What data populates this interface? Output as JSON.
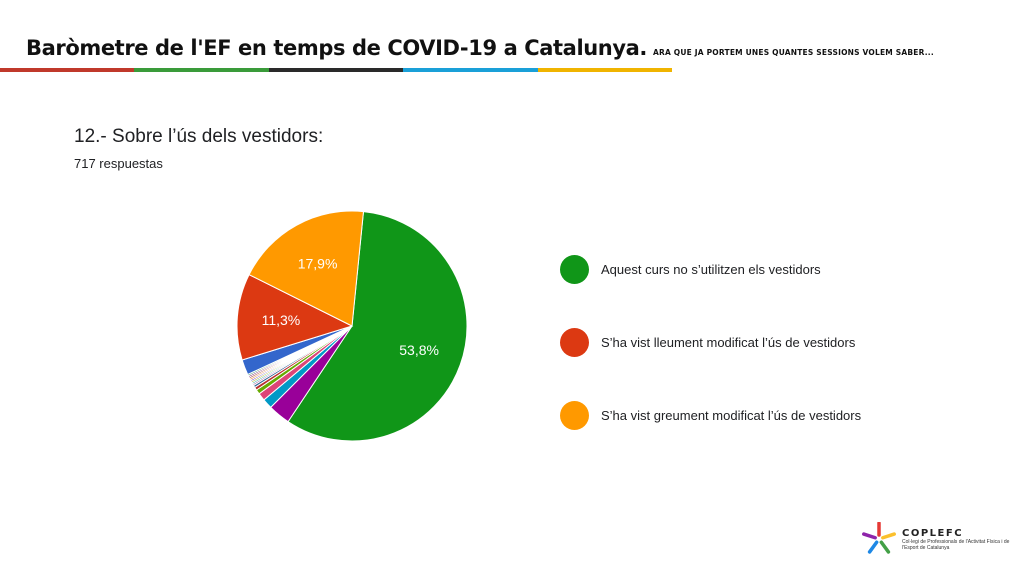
{
  "header": {
    "title": "Baròmetre de l'EF en temps de COVID-19 a Catalunya.",
    "subtitle": "ARA QUE JA PORTEM UNES QUANTES SESSIONS VOLEM SABER...",
    "stripe_colors": [
      "#c0392b",
      "#3a9b3a",
      "#2a2a2a",
      "#1aa0d8",
      "#f0b400"
    ]
  },
  "question": {
    "title": "12.- Sobre l’ús dels vestidors:",
    "responses": "717 respuestas"
  },
  "chart_data": {
    "type": "pie",
    "title": "12.- Sobre l’ús dels vestidors:",
    "slices": [
      {
        "label": "Aquest curs no s’utilitzen els vestidors",
        "value": 53.8,
        "color": "#109618",
        "data_label": "53,8%",
        "in_legend": true
      },
      {
        "label": "",
        "value": 2.9,
        "color": "#990099",
        "data_label": "",
        "in_legend": false
      },
      {
        "label": "",
        "value": 1.3,
        "color": "#0099c6",
        "data_label": "",
        "in_legend": false
      },
      {
        "label": "",
        "value": 1.0,
        "color": "#dd4477",
        "data_label": "",
        "in_legend": false
      },
      {
        "label": "",
        "value": 0.6,
        "color": "#66aa00",
        "data_label": "",
        "in_legend": false
      },
      {
        "label": "",
        "value": 0.4,
        "color": "#b82e2e",
        "data_label": "",
        "in_legend": false
      },
      {
        "label": "",
        "value": 0.3,
        "color": "#316395",
        "data_label": "",
        "in_legend": false
      },
      {
        "label": "",
        "value": 0.2,
        "color": "#994499",
        "data_label": "",
        "in_legend": false
      },
      {
        "label": "",
        "value": 0.2,
        "color": "#22aa99",
        "data_label": "",
        "in_legend": false
      },
      {
        "label": "",
        "value": 0.2,
        "color": "#aaaa11",
        "data_label": "",
        "in_legend": false
      },
      {
        "label": "",
        "value": 0.2,
        "color": "#6633cc",
        "data_label": "",
        "in_legend": false
      },
      {
        "label": "",
        "value": 0.2,
        "color": "#e67300",
        "data_label": "",
        "in_legend": false
      },
      {
        "label": "",
        "value": 0.2,
        "color": "#8b0707",
        "data_label": "",
        "in_legend": false
      },
      {
        "label": "",
        "value": 0.2,
        "color": "#651067",
        "data_label": "",
        "in_legend": false
      },
      {
        "label": "",
        "value": 0.2,
        "color": "#329262",
        "data_label": "",
        "in_legend": false
      },
      {
        "label": "",
        "value": 2.0,
        "color": "#3366cc",
        "data_label": "",
        "in_legend": false
      },
      {
        "label": "S’ha vist lleument modificat l’ús de vestidors",
        "value": 11.3,
        "color": "#dc3912",
        "data_label": "11,3%",
        "in_legend": true
      },
      {
        "label": "S’ha vist greument modificat l’ús de vestidors",
        "value": 17.9,
        "color": "#ff9900",
        "data_label": "17,9%",
        "in_legend": true
      }
    ],
    "legend_position": "right"
  },
  "logo": {
    "name": "COPLEFC",
    "subtitle": "Col·legi de Professionals de l'Activitat Física i de l'Esport de Catalunya",
    "colors": [
      "#e53935",
      "#fbc02d",
      "#43a047",
      "#1e88e5",
      "#8e24aa"
    ]
  }
}
